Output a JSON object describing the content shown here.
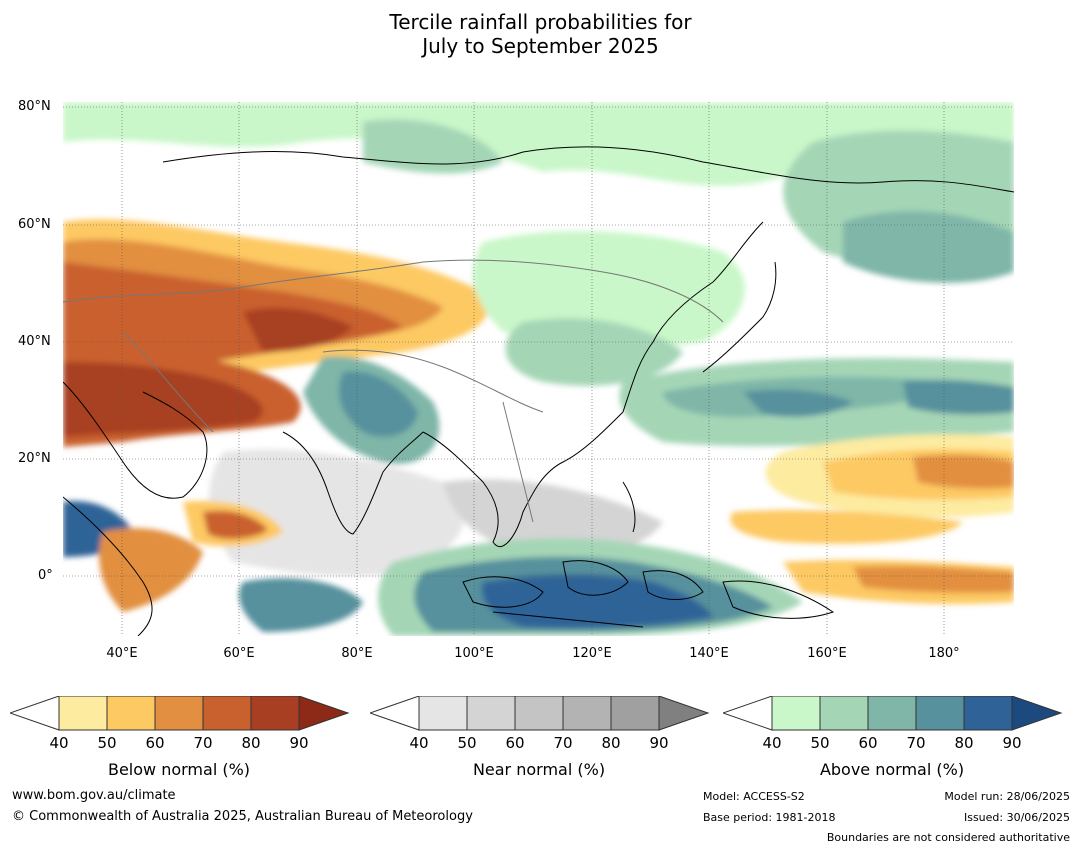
{
  "title": {
    "line1": "Tercile rainfall probabilities for",
    "line2": "July to September 2025"
  },
  "axes": {
    "lat_labels": [
      "80°N",
      "60°N",
      "40°N",
      "20°N",
      "0°"
    ],
    "lon_labels": [
      "40°E",
      "60°E",
      "80°E",
      "100°E",
      "120°E",
      "140°E",
      "160°E",
      "180°"
    ]
  },
  "colorbars": [
    {
      "label": "Below normal (%)",
      "ticks": [
        "40",
        "50",
        "60",
        "70",
        "80",
        "90"
      ],
      "colors": [
        "#ffffff",
        "#fdeba0",
        "#fdc963",
        "#e28f41",
        "#c9612f",
        "#a83f22",
        "#8c2a17"
      ]
    },
    {
      "label": "Near normal (%)",
      "ticks": [
        "40",
        "50",
        "60",
        "70",
        "80",
        "90"
      ],
      "colors": [
        "#ffffff",
        "#e5e5e5",
        "#d4d4d4",
        "#c4c4c4",
        "#b3b3b3",
        "#a0a0a0",
        "#808080"
      ]
    },
    {
      "label": "Above normal (%)",
      "ticks": [
        "40",
        "50",
        "60",
        "70",
        "80",
        "90"
      ],
      "colors": [
        "#ffffff",
        "#c9f7c9",
        "#a4d6b6",
        "#7fb6a8",
        "#56919d",
        "#2f6397",
        "#1c4a7e"
      ]
    }
  ],
  "footer": {
    "website": "www.bom.gov.au/climate",
    "copyright": "© Commonwealth of Australia 2025, Australian Bureau of Meteorology",
    "model": "Model: ACCESS-S2",
    "base_period": "Base period: 1981-2018",
    "model_run": "Model run: 28/06/2025",
    "issued": "Issued: 30/06/2025",
    "disclaimer": "Boundaries are not considered authoritative"
  }
}
